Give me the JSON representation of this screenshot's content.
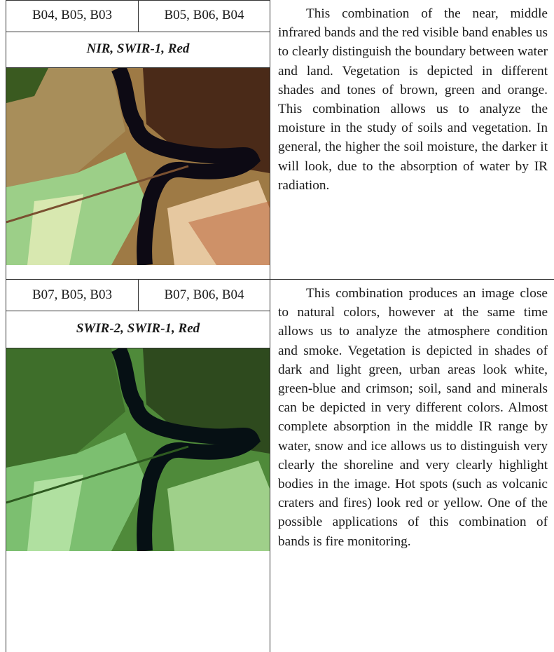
{
  "rows": [
    {
      "bands": [
        "B04, B05, B03",
        "B05, B06, B04"
      ],
      "subtitle": "NIR, SWIR-1, Red",
      "text": "This combination of the near, middle infrared bands and the red visible band enables us to clearly distinguish the boundary between water and land. Vegetation is depicted in different shades and tones of brown, green and orange. This combination allows us to analyze the moisture in the study of soils and vegetation. In general, the higher the soil moisture, the darker it will look, due to the absorption of water by IR radiation."
    },
    {
      "bands": [
        "B07, B05, B03",
        "B07, B06, B04"
      ],
      "subtitle": "SWIR-2, SWIR-1, Red",
      "text": "This combination produces an image close to natural colors, however at the same time allows us to analyze the atmosphere condition and smoke. Vegetation is depicted in shades of dark and light green, urban areas look white, green-blue and crimson; soil, sand and minerals can be depicted in very different colors. Almost complete absorption in the middle IR range by water, snow and ice allows us to distinguish very clearly the shoreline and very clearly highlight bodies in the image. Hot spots (such as volcanic craters and fires) look red or yellow. One of the possible applications of this combination of bands is fire monitoring."
    }
  ]
}
